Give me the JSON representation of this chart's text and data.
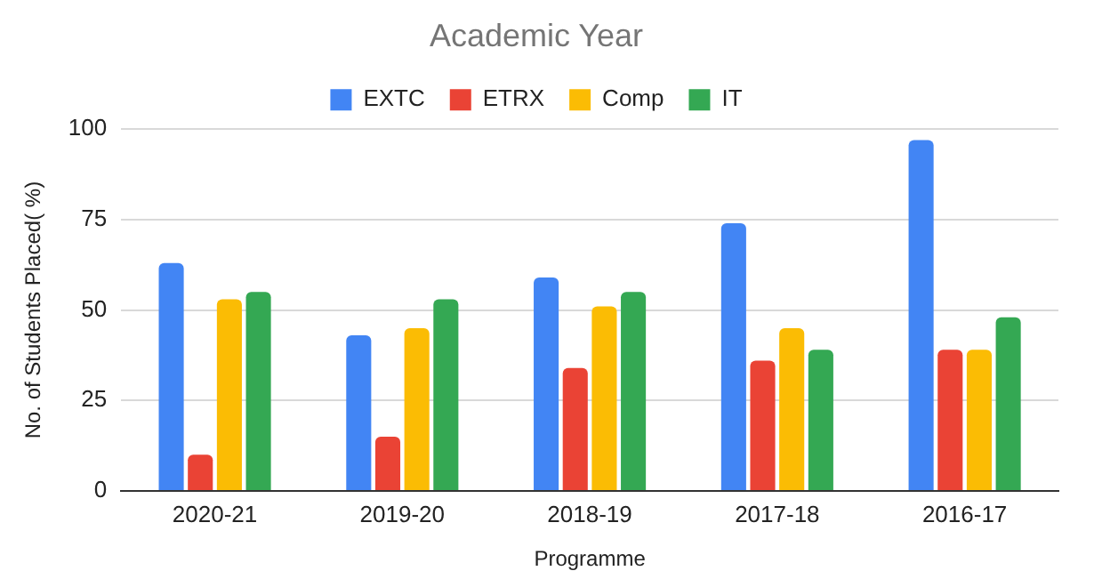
{
  "chart_data": {
    "type": "bar",
    "title": "Academic Year",
    "xlabel": "Programme",
    "ylabel": "No. of Students Placed( %)",
    "categories": [
      "2020-21",
      "2019-20",
      "2018-19",
      "2017-18",
      "2016-17"
    ],
    "series": [
      {
        "name": "EXTC",
        "color": "#4285f4",
        "values": [
          63,
          43,
          59,
          74,
          97
        ]
      },
      {
        "name": "ETRX",
        "color": "#ea4335",
        "values": [
          10,
          15,
          34,
          36,
          39
        ]
      },
      {
        "name": "Comp",
        "color": "#fbbc04",
        "values": [
          53,
          45,
          51,
          45,
          39
        ]
      },
      {
        "name": "IT",
        "color": "#34a853",
        "values": [
          55,
          53,
          55,
          39,
          48
        ]
      }
    ],
    "ylim": [
      0,
      100
    ],
    "yticks": [
      0,
      25,
      50,
      75,
      100
    ],
    "grid": "y",
    "legend": "top"
  }
}
